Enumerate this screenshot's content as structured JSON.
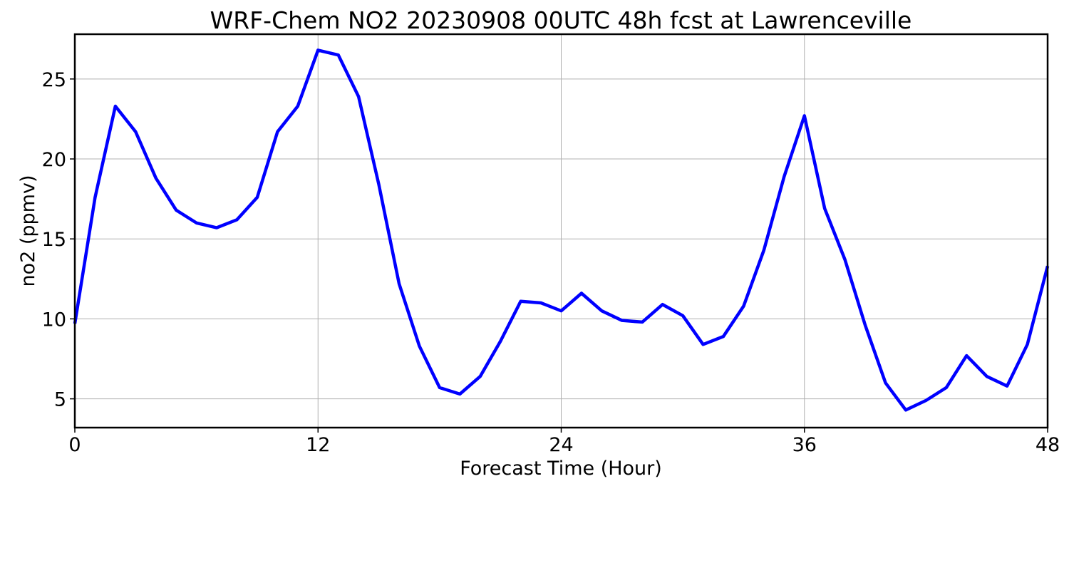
{
  "chart_data": {
    "type": "line",
    "title": "WRF-Chem NO2  20230908 00UTC 48h fcst at Lawrenceville",
    "xlabel": "Forecast Time (Hour)",
    "ylabel": "no2  (ppmv)",
    "xlim": [
      0,
      48
    ],
    "ylim": [
      3.2,
      27.8
    ],
    "xticks": [
      0,
      12,
      24,
      36,
      48
    ],
    "yticks": [
      5,
      10,
      15,
      20,
      25
    ],
    "grid": true,
    "series": [
      {
        "color": "#0000ff",
        "x": [
          0,
          1,
          2,
          3,
          4,
          5,
          6,
          7,
          8,
          9,
          10,
          11,
          12,
          13,
          14,
          15,
          16,
          17,
          18,
          19,
          20,
          21,
          22,
          23,
          24,
          25,
          26,
          27,
          28,
          29,
          30,
          31,
          32,
          33,
          34,
          35,
          36,
          37,
          38,
          39,
          40,
          41,
          42,
          43,
          44,
          45,
          46,
          47,
          48
        ],
        "values": [
          9.7,
          17.6,
          23.3,
          21.7,
          18.8,
          16.8,
          16.0,
          15.7,
          16.2,
          17.6,
          21.7,
          23.3,
          26.8,
          26.5,
          23.9,
          18.4,
          12.2,
          8.3,
          5.7,
          5.3,
          6.4,
          8.6,
          11.1,
          11.0,
          10.5,
          11.6,
          10.5,
          9.9,
          9.8,
          10.9,
          10.2,
          8.4,
          8.9,
          10.8,
          14.3,
          18.9,
          22.7,
          16.9,
          13.7,
          9.6,
          6.0,
          4.3,
          4.9,
          5.7,
          7.7,
          6.4,
          5.8,
          8.4,
          13.3
        ]
      }
    ]
  }
}
